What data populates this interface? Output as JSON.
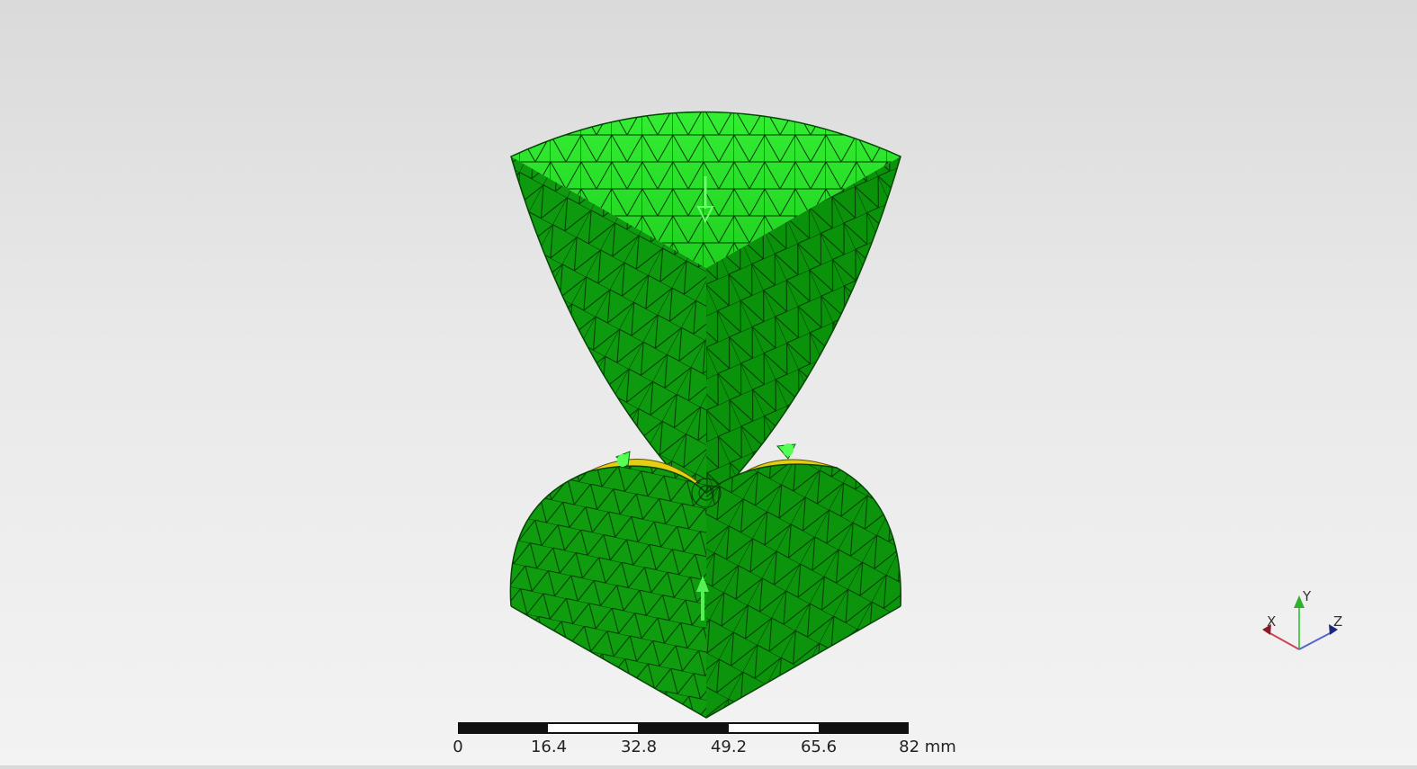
{
  "scale_bar": {
    "ticks": [
      "0",
      "16.4",
      "32.8",
      "49.2",
      "65.6",
      "82 mm"
    ]
  },
  "axes": {
    "x": "X",
    "y": "Y",
    "z": "Z"
  },
  "colors": {
    "background_top": "#dadada",
    "background_bottom": "#f3f3f3",
    "part_green_light": "#22dd22",
    "part_green_dark": "#0a8f0a",
    "contact_yellow": "#e6cf12",
    "load_arrow": "#44ff44",
    "axis_x": "#c03040",
    "axis_y": "#40c040",
    "axis_z": "#3040b0"
  },
  "icons": {
    "load_arrow_top": "down-arrow-icon",
    "load_arrow_bottom": "up-arrow-icon",
    "contact_markers": "cone-marker-icon",
    "triad": "axis-triad-icon"
  }
}
